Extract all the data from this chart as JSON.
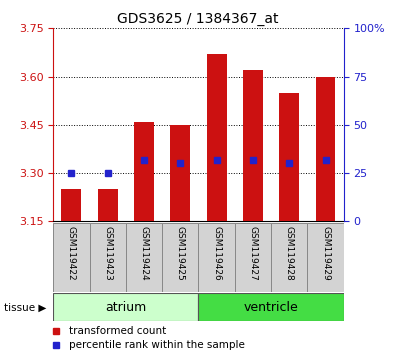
{
  "title": "GDS3625 / 1384367_at",
  "samples": [
    "GSM119422",
    "GSM119423",
    "GSM119424",
    "GSM119425",
    "GSM119426",
    "GSM119427",
    "GSM119428",
    "GSM119429"
  ],
  "transformed_counts": [
    3.25,
    3.25,
    3.46,
    3.45,
    3.67,
    3.62,
    3.55,
    3.6
  ],
  "percentile_ranks": [
    25,
    25,
    32,
    30,
    32,
    32,
    30,
    32
  ],
  "ylim_left": [
    3.15,
    3.75
  ],
  "ylim_right": [
    0,
    100
  ],
  "yticks_left": [
    3.15,
    3.3,
    3.45,
    3.6,
    3.75
  ],
  "yticks_right": [
    0,
    25,
    50,
    75,
    100
  ],
  "bar_color": "#cc1111",
  "dot_color": "#2222cc",
  "bar_bottom": 3.15,
  "tissue_groups": [
    {
      "label": "atrium",
      "start": 0,
      "end": 4,
      "color": "#ccffcc"
    },
    {
      "label": "ventricle",
      "start": 4,
      "end": 8,
      "color": "#44dd44"
    }
  ],
  "tissue_label": "tissue",
  "legend_red": "transformed count",
  "legend_blue": "percentile rank within the sample",
  "left_axis_color": "#cc1111",
  "right_axis_color": "#2222cc",
  "sample_bg_color": "#d3d3d3",
  "grid_linestyle": "dotted"
}
